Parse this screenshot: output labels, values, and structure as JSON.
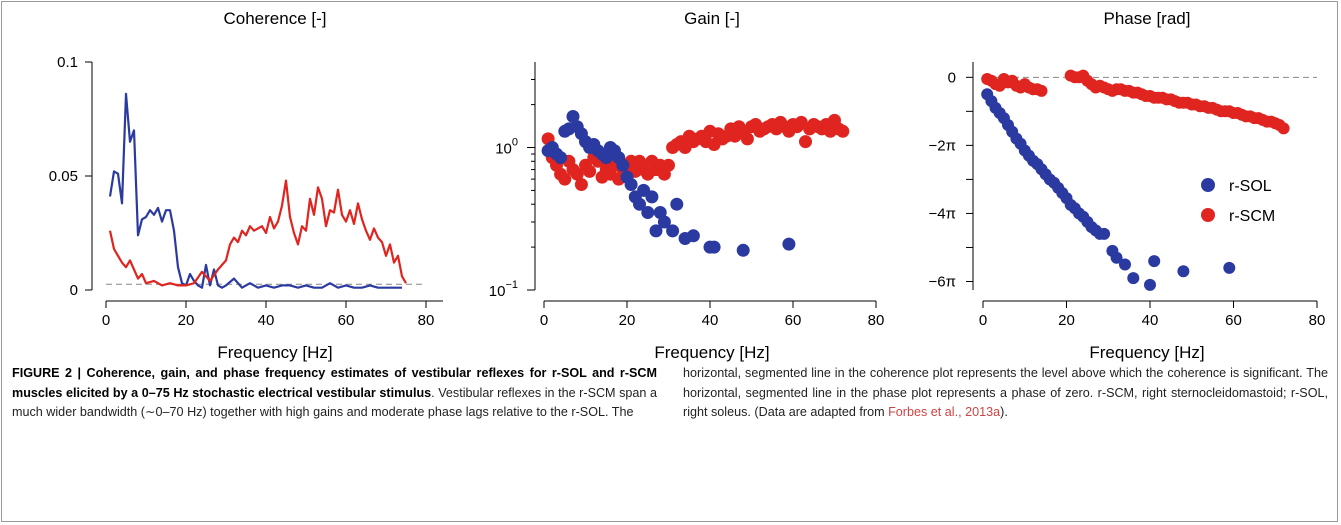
{
  "chart_data": [
    {
      "type": "line",
      "title": "Coherence [-]",
      "xlabel": "Frequency [Hz]",
      "xlim": [
        0,
        80
      ],
      "ylim": [
        0,
        0.1
      ],
      "xticks": [
        "0",
        "20",
        "40",
        "60",
        "80"
      ],
      "yticks": [
        {
          "value": 0,
          "label": "0"
        },
        {
          "value": 0.05,
          "label": "0.05"
        },
        {
          "value": 0.1,
          "label": "0.1"
        }
      ],
      "significance_level": 0.0025,
      "series": [
        {
          "color": "#2b3aa0",
          "x": [
            1,
            2,
            3,
            4,
            5,
            6,
            7,
            8,
            9,
            10,
            11,
            12,
            13,
            14,
            15,
            16,
            17,
            18,
            19,
            20,
            21,
            22,
            23,
            24,
            25,
            26,
            27,
            28,
            29,
            30,
            32,
            34,
            36,
            38,
            40,
            42,
            44,
            46,
            48,
            50,
            52,
            54,
            56,
            58,
            60,
            62,
            64,
            66,
            68,
            70,
            72,
            74
          ],
          "y": [
            0.041,
            0.052,
            0.051,
            0.038,
            0.086,
            0.065,
            0.07,
            0.024,
            0.031,
            0.032,
            0.035,
            0.033,
            0.036,
            0.03,
            0.035,
            0.035,
            0.026,
            0.01,
            0.003,
            0.002,
            0.007,
            0.004,
            0.002,
            0.001,
            0.011,
            0.002,
            0.009,
            0.002,
            0.001,
            0.002,
            0.005,
            0.001,
            0.003,
            0.001,
            0.002,
            0.001,
            0.002,
            0.002,
            0.001,
            0.002,
            0.001,
            0.001,
            0.003,
            0.001,
            0.002,
            0.001,
            0.001,
            0.002,
            0.001,
            0.001,
            0.001,
            0.001
          ]
        },
        {
          "color": "#e0241f",
          "x": [
            1,
            2,
            3,
            4,
            5,
            6,
            7,
            8,
            9,
            10,
            12,
            14,
            16,
            18,
            20,
            22,
            24,
            26,
            28,
            30,
            31,
            32,
            33,
            34,
            35,
            36,
            37,
            38,
            39,
            40,
            41,
            42,
            43,
            44,
            45,
            46,
            47,
            48,
            49,
            50,
            51,
            52,
            53,
            54,
            55,
            56,
            57,
            58,
            59,
            60,
            61,
            62,
            63,
            64,
            65,
            66,
            67,
            68,
            69,
            70,
            71,
            72,
            73,
            74,
            75
          ],
          "y": [
            0.026,
            0.018,
            0.015,
            0.012,
            0.01,
            0.013,
            0.009,
            0.005,
            0.007,
            0.003,
            0.004,
            0.002,
            0.003,
            0.002,
            0.002,
            0.003,
            0.008,
            0.004,
            0.009,
            0.013,
            0.02,
            0.023,
            0.021,
            0.026,
            0.024,
            0.028,
            0.026,
            0.027,
            0.028,
            0.025,
            0.032,
            0.027,
            0.03,
            0.037,
            0.048,
            0.032,
            0.025,
            0.02,
            0.028,
            0.026,
            0.04,
            0.033,
            0.045,
            0.04,
            0.028,
            0.035,
            0.034,
            0.044,
            0.033,
            0.03,
            0.035,
            0.029,
            0.038,
            0.031,
            0.026,
            0.022,
            0.027,
            0.023,
            0.021,
            0.015,
            0.02,
            0.012,
            0.015,
            0.006,
            0.003
          ]
        }
      ]
    },
    {
      "type": "scatter",
      "title": "Gain [-]",
      "xlabel": "Frequency [Hz]",
      "xlim": [
        0,
        80
      ],
      "ylim_log10": [
        -1,
        0.6
      ],
      "xticks": [
        "0",
        "20",
        "40",
        "60",
        "80"
      ],
      "yticks": [
        {
          "exp": 0,
          "base": "10",
          "power": "0"
        },
        {
          "exp": -1,
          "base": "10",
          "power": "−1"
        }
      ],
      "series": [
        {
          "name": "r-SOL",
          "color": "#2b3aa0",
          "x": [
            1,
            2,
            3,
            4,
            5,
            6,
            7,
            8,
            9,
            10,
            11,
            12,
            13,
            14,
            15,
            16,
            17,
            18,
            19,
            20,
            21,
            22,
            23,
            24,
            25,
            26,
            27,
            28,
            29,
            31,
            32,
            34,
            36,
            40,
            41,
            48,
            59
          ],
          "y": [
            0.95,
            1.0,
            0.9,
            0.85,
            1.3,
            1.35,
            1.65,
            1.4,
            1.25,
            1.1,
            1.0,
            1.05,
            0.95,
            0.9,
            0.85,
            1.0,
            0.95,
            0.85,
            0.75,
            0.62,
            0.55,
            0.45,
            0.4,
            0.5,
            0.35,
            0.45,
            0.26,
            0.35,
            0.3,
            0.26,
            0.4,
            0.23,
            0.24,
            0.2,
            0.2,
            0.19,
            0.21
          ]
        },
        {
          "name": "r-SCM",
          "color": "#e0241f",
          "x": [
            1,
            2,
            3,
            4,
            5,
            6,
            7,
            8,
            9,
            10,
            11,
            12,
            13,
            14,
            15,
            16,
            17,
            18,
            19,
            20,
            21,
            22,
            23,
            24,
            25,
            26,
            27,
            28,
            29,
            30,
            31,
            32,
            33,
            34,
            35,
            36,
            37,
            38,
            39,
            40,
            41,
            42,
            43,
            44,
            45,
            46,
            47,
            48,
            49,
            50,
            51,
            52,
            53,
            54,
            55,
            56,
            57,
            58,
            59,
            60,
            61,
            62,
            63,
            64,
            65,
            66,
            67,
            68,
            69,
            70,
            71,
            72
          ],
          "y": [
            1.15,
            0.85,
            0.75,
            0.65,
            0.6,
            0.8,
            0.7,
            0.65,
            0.55,
            0.75,
            0.68,
            0.85,
            0.8,
            0.62,
            0.7,
            0.65,
            0.75,
            0.6,
            0.7,
            0.75,
            0.8,
            0.68,
            0.8,
            0.7,
            0.65,
            0.8,
            0.7,
            0.75,
            0.65,
            0.75,
            1.0,
            1.05,
            1.1,
            1.0,
            1.2,
            1.1,
            1.15,
            1.2,
            1.1,
            1.3,
            1.05,
            1.25,
            1.15,
            1.2,
            1.35,
            1.2,
            1.4,
            1.25,
            1.15,
            1.4,
            1.45,
            1.3,
            1.35,
            1.4,
            1.45,
            1.35,
            1.5,
            1.4,
            1.3,
            1.45,
            1.4,
            1.5,
            1.1,
            1.35,
            1.45,
            1.4,
            1.35,
            1.45,
            1.3,
            1.55,
            1.35,
            1.3
          ]
        }
      ]
    },
    {
      "type": "scatter",
      "title": "Phase [rad]",
      "xlabel": "Frequency [Hz]",
      "xlim": [
        0,
        80
      ],
      "ylim": [
        -6.25,
        0.45
      ],
      "xticks": [
        "0",
        "20",
        "40",
        "60",
        "80"
      ],
      "yticks": [
        {
          "value": 0,
          "label": "0"
        },
        {
          "value": -2,
          "label": "−2π"
        },
        {
          "value": -4,
          "label": "−4π"
        },
        {
          "value": -6,
          "label": "−6π"
        }
      ],
      "y_unit_note": "y values in multiples of pi",
      "legend_position": "right",
      "series": [
        {
          "name": "r-SOL",
          "color": "#2b3aa0",
          "x": [
            1,
            2,
            3,
            4,
            5,
            6,
            7,
            8,
            9,
            10,
            11,
            12,
            13,
            14,
            15,
            16,
            17,
            18,
            19,
            20,
            21,
            22,
            23,
            24,
            25,
            26,
            27,
            28,
            29,
            31,
            32,
            34,
            36,
            40,
            41,
            48,
            59
          ],
          "y": [
            -0.5,
            -0.7,
            -0.9,
            -1.05,
            -1.2,
            -1.4,
            -1.6,
            -1.8,
            -1.95,
            -2.15,
            -2.3,
            -2.45,
            -2.55,
            -2.7,
            -2.85,
            -3.0,
            -3.1,
            -3.25,
            -3.4,
            -3.55,
            -3.75,
            -3.85,
            -4.0,
            -4.1,
            -4.25,
            -4.4,
            -4.5,
            -4.6,
            -4.6,
            -5.1,
            -5.3,
            -5.5,
            -5.9,
            -6.1,
            -5.4,
            -5.7,
            -5.6
          ]
        },
        {
          "name": "r-SCM",
          "color": "#e0241f",
          "x": [
            1,
            2,
            3,
            4,
            5,
            6,
            7,
            8,
            9,
            10,
            11,
            12,
            13,
            14,
            21,
            22,
            23,
            24,
            25,
            26,
            27,
            28,
            29,
            30,
            31,
            32,
            33,
            34,
            35,
            36,
            37,
            38,
            39,
            40,
            41,
            42,
            43,
            44,
            45,
            46,
            47,
            48,
            49,
            50,
            51,
            52,
            53,
            54,
            55,
            56,
            57,
            58,
            59,
            60,
            61,
            62,
            63,
            64,
            65,
            66,
            67,
            68,
            69,
            70,
            71,
            72
          ],
          "y": [
            -0.05,
            -0.1,
            -0.2,
            -0.25,
            -0.05,
            -0.15,
            -0.1,
            -0.25,
            -0.3,
            -0.2,
            -0.3,
            -0.35,
            -0.35,
            -0.4,
            0.05,
            0.0,
            0.0,
            0.05,
            -0.1,
            -0.2,
            -0.3,
            -0.25,
            -0.3,
            -0.35,
            -0.4,
            -0.35,
            -0.35,
            -0.4,
            -0.4,
            -0.45,
            -0.45,
            -0.5,
            -0.55,
            -0.55,
            -0.6,
            -0.6,
            -0.6,
            -0.65,
            -0.65,
            -0.7,
            -0.75,
            -0.75,
            -0.75,
            -0.8,
            -0.8,
            -0.85,
            -0.85,
            -0.9,
            -0.9,
            -0.95,
            -1.0,
            -1.0,
            -1.0,
            -1.05,
            -1.05,
            -1.1,
            -1.15,
            -1.15,
            -1.2,
            -1.2,
            -1.25,
            -1.3,
            -1.3,
            -1.35,
            -1.4,
            -1.5
          ]
        }
      ]
    }
  ],
  "caption": {
    "lead": "FIGURE 2 | Coherence, gain, and phase frequency estimates of vestibular reflexes for r-SOL and r-SCM muscles elicited by a 0–75 Hz stochastic electrical vestibular stimulus",
    "body_left": ". Vestibular reflexes in the r-SCM span a much wider bandwidth (∼0–70 Hz) together with high gains and moderate phase lags relative to the r-SOL. The",
    "body_right": "horizontal, segmented line in the coherence plot represents the level above which the coherence is significant. The horizontal, segmented line in the phase plot represents a phase of zero. r-SCM, right sternocleidomastoid; r-SOL, right soleus. (Data are adapted from ",
    "ref": "Forbes et al., 2013a",
    "tail": ")."
  }
}
